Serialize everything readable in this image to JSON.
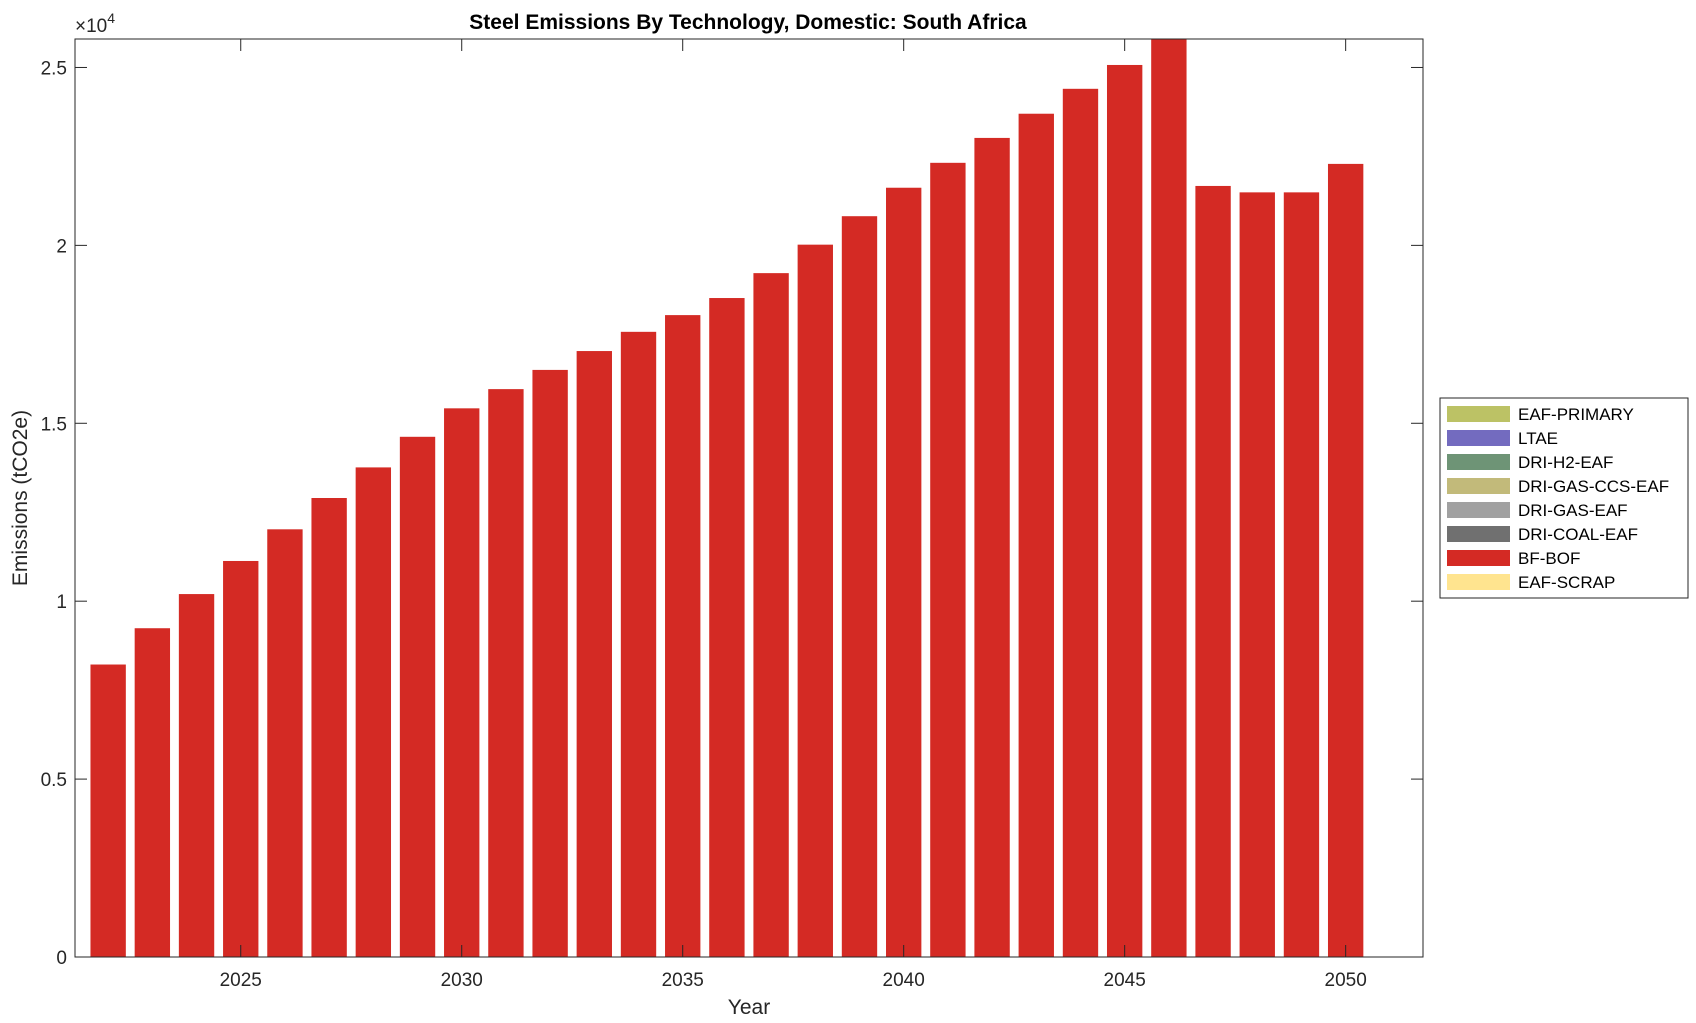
{
  "chart_data": {
    "type": "bar",
    "stacked": true,
    "title": "Steel Emissions By Technology, Domestic: South Africa",
    "xlabel": "Year",
    "ylabel": "Emissions (tCO2e)",
    "y_exponent_label": "×10",
    "y_exponent_power": "4",
    "y_scale": 10000,
    "xlim": [
      2021.25,
      2051.75
    ],
    "ylim": [
      0,
      25800
    ],
    "x_ticks": [
      2025,
      2030,
      2035,
      2040,
      2045,
      2050
    ],
    "x_tick_labels": [
      "2025",
      "2030",
      "2035",
      "2040",
      "2045",
      "2050"
    ],
    "y_ticks": [
      0,
      5000,
      10000,
      15000,
      20000,
      25000
    ],
    "y_tick_labels": [
      "0",
      "0.5",
      "1",
      "1.5",
      "2",
      "2.5"
    ],
    "grid": false,
    "legend_position": "right",
    "x": [
      2022,
      2023,
      2024,
      2025,
      2026,
      2027,
      2028,
      2029,
      2030,
      2031,
      2032,
      2033,
      2034,
      2035,
      2036,
      2037,
      2038,
      2039,
      2040,
      2041,
      2042,
      2043,
      2044,
      2045,
      2046,
      2047,
      2048,
      2049,
      2050
    ],
    "series": [
      {
        "name": "EAF-PRIMARY",
        "color": "#bcc265",
        "values": [
          0,
          0,
          0,
          0,
          0,
          0,
          0,
          0,
          0,
          0,
          0,
          0,
          0,
          0,
          0,
          0,
          0,
          0,
          0,
          0,
          0,
          0,
          0,
          0,
          0,
          0,
          0,
          0,
          0
        ]
      },
      {
        "name": "LTAE",
        "color": "#736bbf",
        "values": [
          0,
          0,
          0,
          0,
          0,
          0,
          0,
          0,
          0,
          0,
          0,
          0,
          0,
          0,
          0,
          0,
          0,
          0,
          0,
          0,
          0,
          0,
          0,
          0,
          0,
          0,
          0,
          0,
          0
        ]
      },
      {
        "name": "DRI-H2-EAF",
        "color": "#6e9476",
        "values": [
          0,
          0,
          0,
          0,
          0,
          0,
          0,
          0,
          0,
          0,
          0,
          0,
          0,
          0,
          0,
          0,
          0,
          0,
          0,
          0,
          0,
          0,
          0,
          0,
          0,
          0,
          0,
          0,
          0
        ]
      },
      {
        "name": "DRI-GAS-CCS-EAF",
        "color": "#c2ba7a",
        "values": [
          0,
          0,
          0,
          0,
          0,
          0,
          0,
          0,
          0,
          0,
          0,
          0,
          0,
          0,
          0,
          0,
          0,
          0,
          0,
          0,
          0,
          0,
          0,
          0,
          0,
          0,
          0,
          0,
          0
        ]
      },
      {
        "name": "DRI-GAS-EAF",
        "color": "#a1a1a1",
        "values": [
          0,
          0,
          0,
          0,
          0,
          0,
          0,
          0,
          0,
          0,
          0,
          0,
          0,
          0,
          0,
          0,
          0,
          0,
          0,
          0,
          0,
          0,
          0,
          0,
          0,
          0,
          0,
          0,
          0
        ]
      },
      {
        "name": "DRI-COAL-EAF",
        "color": "#707070",
        "values": [
          0,
          0,
          0,
          0,
          0,
          0,
          0,
          0,
          0,
          0,
          0,
          0,
          0,
          0,
          0,
          0,
          0,
          0,
          0,
          0,
          0,
          0,
          0,
          0,
          0,
          0,
          0,
          0,
          0
        ]
      },
      {
        "name": "BF-BOF",
        "color": "#d42a24",
        "values": [
          8220,
          9240,
          10200,
          11130,
          12020,
          12900,
          13760,
          14620,
          15420,
          15960,
          16500,
          17030,
          17570,
          18040,
          18520,
          19220,
          20020,
          20820,
          21620,
          22320,
          23020,
          23700,
          24400,
          25070,
          25800,
          21670,
          21490,
          21490,
          22290
        ]
      },
      {
        "name": "EAF-SCRAP",
        "color": "#ffe48f",
        "values": [
          0,
          0,
          0,
          0,
          0,
          0,
          0,
          0,
          0,
          0,
          0,
          0,
          0,
          0,
          0,
          0,
          0,
          0,
          0,
          0,
          0,
          0,
          0,
          0,
          0,
          0,
          0,
          0,
          0
        ]
      }
    ]
  }
}
